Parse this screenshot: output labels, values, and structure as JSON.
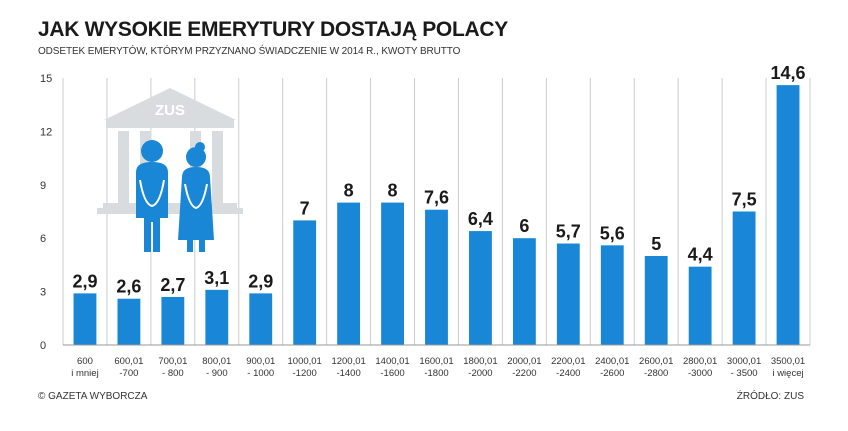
{
  "header": {
    "title": "JAK WYSOKIE EMERYTURY DOSTAJĄ POLACY",
    "subtitle": "ODSETEK EMERYTÓW, KTÓRYM PRZYZNANO ŚWIADCZENIE W 2014 R., KWOTY BRUTTO"
  },
  "footer": {
    "copyright": "© GAZETA WYBORCZA",
    "source": "ŹRÓDŁO: ZUS"
  },
  "illustration": {
    "building_label": "ZUS",
    "icon": "zus-building-with-pensioners-icon"
  },
  "colors": {
    "bar": "#1a87d6",
    "figure": "#1a87d6",
    "building": "#d9dcdf",
    "grid": "#cccccc"
  },
  "chart_data": {
    "type": "bar",
    "title": "JAK WYSOKIE EMERYTURY DOSTAJĄ POLACY",
    "subtitle": "ODSETEK EMERYTÓW, KTÓRYM PRZYZNANO ŚWIADCZENIE W 2014 R., KWOTY BRUTTO",
    "categories": [
      [
        "600",
        "i mniej"
      ],
      [
        "600,01",
        "-700"
      ],
      [
        "700,01",
        "- 800"
      ],
      [
        "800,01",
        "- 900"
      ],
      [
        "900,01",
        "- 1000"
      ],
      [
        "1000,01",
        "-1200"
      ],
      [
        "1200,01",
        "-1400"
      ],
      [
        "1400,01",
        "-1600"
      ],
      [
        "1600,01",
        "-1800"
      ],
      [
        "1800,01",
        "-2000"
      ],
      [
        "2000,01",
        "-2200"
      ],
      [
        "2200,01",
        "-2400"
      ],
      [
        "2400,01",
        "-2600"
      ],
      [
        "2600,01",
        "-2800"
      ],
      [
        "2800,01",
        "-3000"
      ],
      [
        "3000,01",
        "- 3500"
      ],
      [
        "3500,01",
        "i więcej"
      ]
    ],
    "values": [
      2.9,
      2.6,
      2.7,
      3.1,
      2.9,
      7,
      8,
      8,
      7.6,
      6.4,
      6,
      5.7,
      5.6,
      5,
      4.4,
      7.5,
      14.6
    ],
    "value_labels": [
      "2,9",
      "2,6",
      "2,7",
      "3,1",
      "2,9",
      "7",
      "8",
      "8",
      "7,6",
      "6,4",
      "6",
      "5,7",
      "5,6",
      "5",
      "4,4",
      "7,5",
      "14,6"
    ],
    "yticks": [
      0,
      3,
      6,
      9,
      12,
      15
    ],
    "ylim": [
      0,
      15
    ],
    "xlabel": "",
    "ylabel": "",
    "grid": "vertical"
  }
}
